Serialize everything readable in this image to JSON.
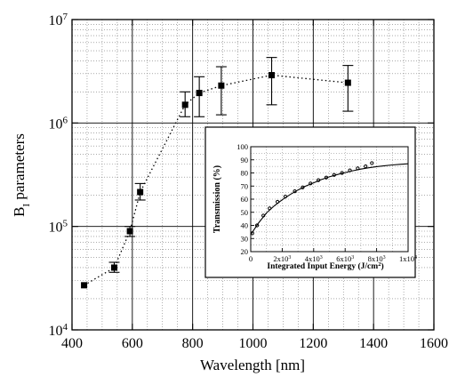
{
  "chart_data": [
    {
      "type": "scatter",
      "title": "",
      "xlabel": "Wavelength [nm]",
      "ylabel_main": "B",
      "ylabel_sub": "I",
      "ylabel_rest": " parameters",
      "x_scale": "linear",
      "y_scale": "log",
      "xlim": [
        400,
        1600
      ],
      "ylim": [
        10000,
        10000000
      ],
      "grid": true,
      "x_ticks": [
        400,
        600,
        800,
        1000,
        1200,
        1400,
        1600
      ],
      "x_tick_labels": [
        "400",
        "600",
        "800",
        "1000",
        "1200",
        "1400",
        "1600"
      ],
      "y_ticks": [
        {
          "value": 10000,
          "base": "10",
          "exp": "4"
        },
        {
          "value": 100000,
          "base": "10",
          "exp": "5"
        },
        {
          "value": 1000000,
          "base": "10",
          "exp": "6"
        },
        {
          "value": 10000000,
          "base": "10",
          "exp": "7"
        }
      ],
      "series": [
        {
          "line_style": "dotted",
          "marker": "square",
          "points": [
            {
              "x": 440,
              "y": 27000
            },
            {
              "x": 540,
              "y": 40000,
              "err_low": 36000,
              "err_high": 45000
            },
            {
              "x": 592,
              "y": 90000,
              "err_low": 80000,
              "err_high": 100000
            },
            {
              "x": 626,
              "y": 215000,
              "err_low": 180000,
              "err_high": 260000
            },
            {
              "x": 775,
              "y": 1500000,
              "err_low": 1150000,
              "err_high": 2000000
            },
            {
              "x": 822,
              "y": 1950000,
              "err_low": 1150000,
              "err_high": 2800000
            },
            {
              "x": 895,
              "y": 2300000,
              "err_low": 1200000,
              "err_high": 3500000
            },
            {
              "x": 1062,
              "y": 2900000,
              "err_low": 1500000,
              "err_high": 4300000
            },
            {
              "x": 1315,
              "y": 2450000,
              "err_low": 1300000,
              "err_high": 3600000
            }
          ]
        }
      ]
    },
    {
      "type": "line",
      "title": "",
      "xlabel": "Integrated Input Energy (J/cm",
      "xlabel_sup": "2",
      "xlabel_end": ")",
      "ylabel": "Transmission (%)",
      "xlim": [
        0,
        10000
      ],
      "ylim": [
        20,
        100
      ],
      "grid": true,
      "x_ticks": [
        {
          "value": 0,
          "base": "0",
          "exp": ""
        },
        {
          "value": 2000,
          "base": "2x10",
          "exp": "3"
        },
        {
          "value": 4000,
          "base": "4x10",
          "exp": "3"
        },
        {
          "value": 6000,
          "base": "6x10",
          "exp": "3"
        },
        {
          "value": 8000,
          "base": "8x10",
          "exp": "3"
        },
        {
          "value": 10000,
          "base": "1x10",
          "exp": "4"
        }
      ],
      "y_ticks": [
        20,
        30,
        40,
        50,
        60,
        70,
        80,
        90,
        100
      ],
      "series": [
        {
          "line_style": "solid",
          "x": [
            0,
            500,
            1000,
            1500,
            2000,
            2500,
            3000,
            3500,
            4000,
            4500,
            5000,
            5500,
            6000,
            6500,
            7000,
            7500,
            8000,
            8500,
            9000,
            9500,
            10000
          ],
          "y": [
            33,
            42,
            49.5,
            55,
            59.5,
            63.5,
            67,
            70,
            72.5,
            75,
            77,
            78.8,
            80.3,
            81.7,
            82.9,
            83.9,
            84.8,
            85.5,
            86.1,
            86.6,
            87
          ]
        },
        {
          "line_style": "markers",
          "x": [
            100,
            400,
            800,
            1200,
            1700,
            2200,
            2800,
            3300,
            3800,
            4300,
            4800,
            5300,
            5800,
            6300,
            6800,
            7300,
            7700
          ],
          "y": [
            34,
            40,
            47.5,
            53,
            58,
            62,
            66,
            69,
            72,
            74.5,
            76.5,
            78.5,
            80,
            82,
            83.5,
            85,
            87.5
          ]
        }
      ]
    }
  ]
}
